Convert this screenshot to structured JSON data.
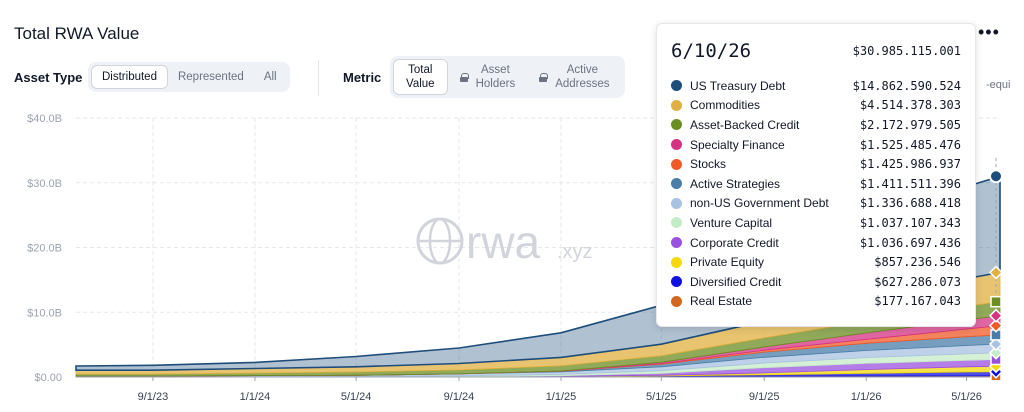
{
  "header": {
    "title": "Total RWA Value"
  },
  "controls": {
    "asset_type_label": "Asset Type",
    "asset_type_options": [
      "Distributed",
      "Represented",
      "All"
    ],
    "asset_type_selected": "Distributed",
    "metric_label": "Metric",
    "metric_options": [
      {
        "line1": "Total",
        "line2": "Value",
        "locked": false
      },
      {
        "line1": "Asset",
        "line2": "Holders",
        "locked": true
      },
      {
        "line1": "Active",
        "line2": "Addresses",
        "locked": true
      }
    ],
    "metric_selected": "Total Value",
    "overflow_text": "-equi"
  },
  "watermark": {
    "main": "rwa",
    "suffix": ".xyz"
  },
  "tooltip": {
    "date": "6/10/26",
    "total": "$30.985.115.001",
    "rows": [
      {
        "name": "US Treasury Debt",
        "value": "$14.862.590.524",
        "color": "#1e4d7b"
      },
      {
        "name": "Commodities",
        "value": "$4.514.378.303",
        "color": "#e0b040"
      },
      {
        "name": "Asset-Backed Credit",
        "value": "$2.172.979.505",
        "color": "#6b8e23"
      },
      {
        "name": "Specialty Finance",
        "value": "$1.525.485.476",
        "color": "#d63384"
      },
      {
        "name": "Stocks",
        "value": "$1.425.986.937",
        "color": "#f05a28"
      },
      {
        "name": "Active Strategies",
        "value": "$1.411.511.396",
        "color": "#4a7ea8"
      },
      {
        "name": "non-US Government Debt",
        "value": "$1.336.688.418",
        "color": "#a8c2e0"
      },
      {
        "name": "Venture Capital",
        "value": "$1.037.107.343",
        "color": "#c5ecc8"
      },
      {
        "name": "Corporate Credit",
        "value": "$1.036.697.436",
        "color": "#9b51e0"
      },
      {
        "name": "Private Equity",
        "value": "$857.236.546",
        "color": "#f5d90a"
      },
      {
        "name": "Diversified Credit",
        "value": "$627.286.073",
        "color": "#1010e0"
      },
      {
        "name": "Real Estate",
        "value": "$177.167.043",
        "color": "#d2691e"
      }
    ]
  },
  "chart_data": {
    "type": "area",
    "stacked": true,
    "title": "Total RWA Value",
    "xlabel": "",
    "ylabel": "",
    "ylim": [
      0,
      40
    ],
    "y_unit": "B USD",
    "y_ticks": [
      "$0.00",
      "$10.0B",
      "$20.0B",
      "$30.0B",
      "$40.0B"
    ],
    "x_ticks": [
      "9/1/23",
      "1/1/24",
      "5/1/24",
      "9/1/24",
      "1/1/25",
      "5/1/25",
      "9/1/25",
      "1/1/26",
      "5/1/26"
    ],
    "grid": true,
    "x": [
      "6/1/23",
      "9/1/23",
      "1/1/24",
      "5/1/24",
      "9/1/24",
      "1/1/25",
      "5/1/25",
      "9/1/25",
      "1/1/26",
      "5/1/26",
      "6/10/26"
    ],
    "series": [
      {
        "name": "Real Estate",
        "color": "#d2691e",
        "values": [
          0.05,
          0.05,
          0.06,
          0.07,
          0.08,
          0.1,
          0.12,
          0.14,
          0.15,
          0.17,
          0.18
        ]
      },
      {
        "name": "Diversified Credit",
        "color": "#1010e0",
        "values": [
          0,
          0,
          0,
          0,
          0,
          0,
          0.05,
          0.2,
          0.4,
          0.6,
          0.63
        ]
      },
      {
        "name": "Private Equity",
        "color": "#f5d90a",
        "values": [
          0,
          0,
          0,
          0,
          0,
          0,
          0.1,
          0.3,
          0.6,
          0.8,
          0.86
        ]
      },
      {
        "name": "Corporate Credit",
        "color": "#9b51e0",
        "values": [
          0,
          0,
          0,
          0,
          0,
          0.1,
          0.3,
          0.8,
          0.95,
          1.0,
          1.04
        ]
      },
      {
        "name": "Venture Capital",
        "color": "#c5ecc8",
        "values": [
          0,
          0,
          0,
          0,
          0.1,
          0.2,
          0.4,
          0.7,
          0.9,
          1.0,
          1.04
        ]
      },
      {
        "name": "non-US Government Debt",
        "color": "#a8c2e0",
        "values": [
          0.1,
          0.1,
          0.15,
          0.2,
          0.3,
          0.4,
          0.6,
          0.9,
          1.1,
          1.3,
          1.34
        ]
      },
      {
        "name": "Active Strategies",
        "color": "#4a7ea8",
        "values": [
          0,
          0,
          0,
          0,
          0,
          0.1,
          0.4,
          0.8,
          1.1,
          1.35,
          1.41
        ]
      },
      {
        "name": "Stocks",
        "color": "#f05a28",
        "values": [
          0,
          0,
          0,
          0,
          0,
          0.02,
          0.1,
          0.3,
          0.6,
          1.2,
          1.43
        ]
      },
      {
        "name": "Specialty Finance",
        "color": "#d63384",
        "values": [
          0,
          0,
          0,
          0,
          0,
          0,
          0.2,
          0.5,
          1.0,
          1.4,
          1.53
        ]
      },
      {
        "name": "Asset-Backed Credit",
        "color": "#6b8e23",
        "values": [
          0.3,
          0.3,
          0.4,
          0.5,
          0.6,
          0.8,
          1.0,
          1.4,
          1.8,
          2.1,
          2.17
        ]
      },
      {
        "name": "Commodities",
        "color": "#e0b040",
        "values": [
          0.6,
          0.6,
          0.7,
          0.8,
          1.0,
          1.3,
          1.8,
          2.6,
          3.4,
          4.3,
          4.51
        ]
      },
      {
        "name": "US Treasury Debt",
        "color": "#1e4d7b",
        "values": [
          0.65,
          0.75,
          0.95,
          1.6,
          2.4,
          3.8,
          6.0,
          8.5,
          11.0,
          14.2,
          14.86
        ]
      }
    ],
    "total_at_hover": 30.99
  }
}
